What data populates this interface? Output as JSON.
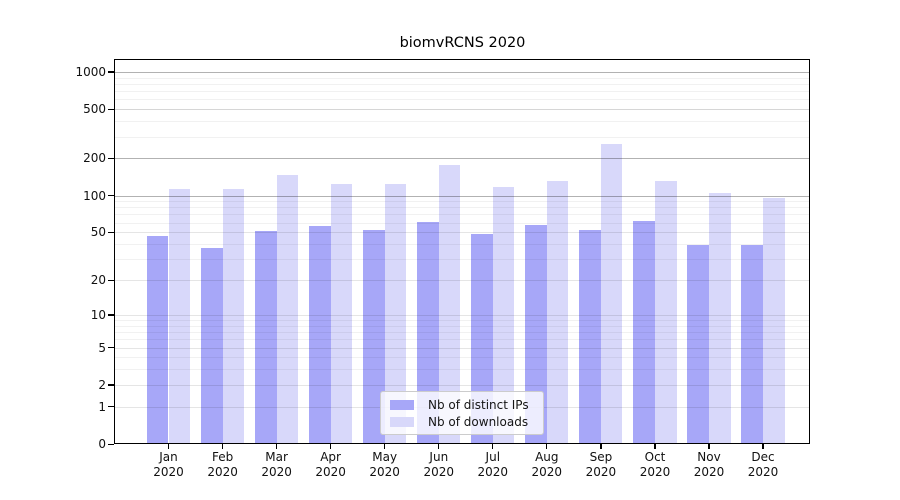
{
  "chart_data": {
    "type": "bar",
    "title": "biomvRCNS 2020",
    "x_year": "2020",
    "categories": [
      "Jan",
      "Feb",
      "Mar",
      "Apr",
      "May",
      "Jun",
      "Jul",
      "Aug",
      "Sep",
      "Oct",
      "Nov",
      "Dec"
    ],
    "series": [
      {
        "name": "Nb of distinct IPs",
        "color": "#a7a7f8",
        "values": [
          47,
          37,
          51,
          56,
          52,
          61,
          48,
          57,
          52,
          62,
          39,
          39
        ]
      },
      {
        "name": "Nb of downloads",
        "color": "#d8d8fa",
        "values": [
          112,
          112,
          148,
          123,
          124,
          177,
          118,
          131,
          260,
          132,
          104,
          95
        ]
      }
    ],
    "y_ticks": [
      0,
      1,
      2,
      5,
      10,
      20,
      50,
      100,
      200,
      500,
      1000
    ],
    "y_scale": "log1p",
    "ylim": [
      0,
      1230
    ],
    "grid": true,
    "legend_position": "lower center"
  }
}
